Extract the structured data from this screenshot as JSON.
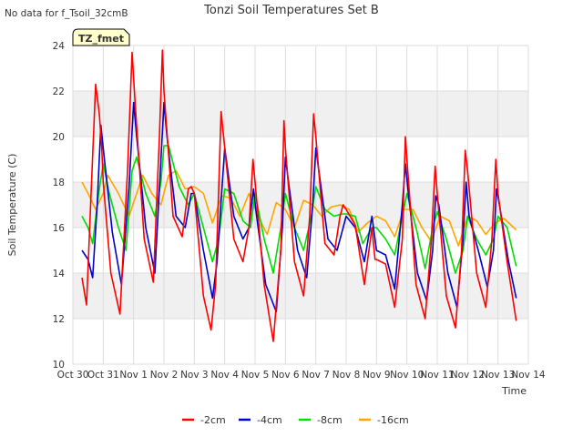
{
  "chart_data": {
    "type": "line",
    "title": "Tonzi Soil Temperatures Set B",
    "no_data_note": "No data for f_Tsoil_32cmB",
    "site_badge": "TZ_fmet",
    "xlabel": "Time",
    "ylabel": "Soil Temperature (C)",
    "ylim": [
      10,
      24
    ],
    "yticks": [
      10,
      12,
      14,
      16,
      18,
      20,
      22,
      24
    ],
    "xlim": [
      0,
      15
    ],
    "xticks": [
      {
        "t": 0,
        "label": "Oct 30"
      },
      {
        "t": 1,
        "label": "Oct 31"
      },
      {
        "t": 2,
        "label": "Nov 1"
      },
      {
        "t": 3,
        "label": "Nov 2"
      },
      {
        "t": 4,
        "label": "Nov 3"
      },
      {
        "t": 5,
        "label": "Nov 4"
      },
      {
        "t": 6,
        "label": "Nov 5"
      },
      {
        "t": 7,
        "label": "Nov 6"
      },
      {
        "t": 8,
        "label": "Nov 7"
      },
      {
        "t": 9,
        "label": "Nov 8"
      },
      {
        "t": 10,
        "label": "Nov 9"
      },
      {
        "t": 11,
        "label": "Nov 10"
      },
      {
        "t": 12,
        "label": "Nov 11"
      },
      {
        "t": 13,
        "label": "Nov 12"
      },
      {
        "t": 14,
        "label": "Nov 13"
      },
      {
        "t": 15,
        "label": "Nov 14"
      }
    ],
    "grid": true,
    "legend_position": "bottom",
    "series": [
      {
        "name": "-2cm",
        "color": "#ff0000",
        "x": [
          0.3,
          0.45,
          0.6,
          0.75,
          0.87,
          0.95,
          1.0,
          1.25,
          1.55,
          1.8,
          1.95,
          2.05,
          2.35,
          2.65,
          2.85,
          2.95,
          3.0,
          3.3,
          3.6,
          3.8,
          3.9,
          4.0,
          4.3,
          4.55,
          4.7,
          4.82,
          4.88,
          5.0,
          5.3,
          5.6,
          5.8,
          5.93,
          6.0,
          6.3,
          6.6,
          6.85,
          6.95,
          7.0,
          7.3,
          7.6,
          7.8,
          7.93,
          8.0,
          8.3,
          8.6,
          8.8,
          8.9,
          9.0,
          9.3,
          9.6,
          9.85,
          9.95,
          10.0,
          10.3,
          10.6,
          10.85,
          10.95,
          11.0,
          11.3,
          11.6,
          11.8,
          11.93,
          12.0,
          12.3,
          12.6,
          12.8,
          12.92,
          13.0,
          13.3,
          13.6,
          13.8,
          13.93,
          14.0,
          14.3,
          14.6
        ],
        "y": [
          13.8,
          12.6,
          17.5,
          22.3,
          21.0,
          19.5,
          18.0,
          14.0,
          12.2,
          18.5,
          23.7,
          21.5,
          15.5,
          13.6,
          20.0,
          23.8,
          22.0,
          16.5,
          15.6,
          17.7,
          17.8,
          17.5,
          13.0,
          11.5,
          13.5,
          18.5,
          21.1,
          19.5,
          15.5,
          14.5,
          16.0,
          19.0,
          18.0,
          13.5,
          11.0,
          15.0,
          20.7,
          19.5,
          14.5,
          13.0,
          16.5,
          21.0,
          20.0,
          15.3,
          14.8,
          16.5,
          17.0,
          16.8,
          16.1,
          13.5,
          16.0,
          14.6,
          14.6,
          14.4,
          12.5,
          15.5,
          20.0,
          19.0,
          13.5,
          12.0,
          15.3,
          18.7,
          17.5,
          13.0,
          11.6,
          15.0,
          19.4,
          18.5,
          14.0,
          12.5,
          15.5,
          19.0,
          17.5,
          14.5,
          11.9
        ]
      },
      {
        "name": "-4cm",
        "color": "#0000cc",
        "x": [
          0.3,
          0.5,
          0.65,
          0.8,
          0.92,
          1.0,
          1.3,
          1.6,
          1.85,
          2.0,
          2.1,
          2.4,
          2.7,
          2.9,
          3.0,
          3.1,
          3.4,
          3.7,
          3.9,
          4.0,
          4.3,
          4.6,
          4.75,
          4.9,
          5.0,
          5.3,
          5.6,
          5.8,
          5.95,
          6.05,
          6.35,
          6.7,
          6.9,
          7.0,
          7.1,
          7.4,
          7.7,
          7.9,
          8.0,
          8.1,
          8.4,
          8.7,
          8.9,
          9.0,
          9.3,
          9.6,
          9.85,
          10.0,
          10.3,
          10.6,
          10.85,
          10.95,
          11.05,
          11.35,
          11.65,
          11.85,
          11.95,
          12.05,
          12.35,
          12.65,
          12.85,
          12.95,
          13.05,
          13.35,
          13.65,
          13.85,
          13.95,
          14.05,
          14.35,
          14.6
        ],
        "y": [
          15.0,
          14.6,
          13.8,
          17.0,
          20.5,
          19.5,
          15.8,
          13.5,
          17.8,
          21.5,
          20.0,
          16.0,
          14.0,
          19.0,
          21.5,
          20.0,
          16.5,
          16.0,
          17.5,
          17.5,
          15.0,
          12.9,
          14.5,
          17.5,
          19.5,
          16.5,
          15.5,
          16.0,
          17.7,
          16.5,
          13.5,
          12.3,
          16.0,
          19.1,
          18.0,
          15.0,
          13.8,
          17.0,
          19.5,
          18.5,
          15.5,
          15.0,
          16.0,
          16.5,
          16.0,
          14.5,
          16.5,
          15.0,
          14.8,
          13.3,
          17.0,
          18.8,
          17.5,
          14.0,
          12.8,
          15.0,
          17.4,
          17.0,
          14.0,
          12.5,
          15.5,
          18.0,
          16.5,
          15.0,
          13.4,
          15.0,
          17.7,
          17.0,
          14.5,
          12.9
        ]
      },
      {
        "name": "-8cm",
        "color": "#00dd00",
        "x": [
          0.3,
          0.5,
          0.65,
          0.85,
          1.0,
          1.2,
          1.5,
          1.75,
          1.95,
          2.1,
          2.4,
          2.7,
          2.9,
          3.0,
          3.15,
          3.5,
          3.8,
          4.0,
          4.3,
          4.6,
          4.8,
          5.0,
          5.3,
          5.6,
          5.85,
          6.0,
          6.3,
          6.6,
          6.85,
          7.0,
          7.3,
          7.6,
          7.85,
          8.0,
          8.3,
          8.6,
          8.85,
          9.0,
          9.3,
          9.55,
          9.85,
          10.0,
          10.3,
          10.6,
          10.85,
          11.0,
          11.3,
          11.6,
          11.85,
          12.0,
          12.3,
          12.6,
          12.85,
          13.0,
          13.3,
          13.6,
          13.85,
          14.0,
          14.3,
          14.6
        ],
        "y": [
          16.5,
          16.0,
          15.3,
          17.5,
          18.8,
          17.5,
          16.0,
          15.0,
          18.5,
          19.1,
          17.5,
          16.5,
          18.0,
          19.6,
          19.6,
          17.8,
          17.0,
          17.5,
          16.0,
          14.5,
          15.5,
          17.7,
          17.5,
          16.3,
          16.0,
          17.5,
          15.5,
          14.0,
          16.0,
          17.5,
          16.0,
          15.0,
          16.5,
          17.8,
          16.8,
          16.5,
          16.6,
          16.6,
          16.5,
          15.3,
          16.0,
          16.0,
          15.5,
          14.8,
          16.5,
          17.5,
          16.0,
          14.2,
          16.0,
          16.7,
          15.5,
          14.0,
          15.0,
          16.5,
          15.5,
          14.8,
          15.5,
          16.5,
          16.0,
          14.3
        ]
      },
      {
        "name": "-16cm",
        "color": "#ffa500",
        "x": [
          0.3,
          0.5,
          0.75,
          1.0,
          1.15,
          1.5,
          1.85,
          2.1,
          2.3,
          2.6,
          2.9,
          3.15,
          3.4,
          3.7,
          4.0,
          4.3,
          4.6,
          4.9,
          5.2,
          5.5,
          5.8,
          6.1,
          6.4,
          6.7,
          7.0,
          7.3,
          7.6,
          7.9,
          8.2,
          8.5,
          8.8,
          9.1,
          9.4,
          9.7,
          10.0,
          10.3,
          10.6,
          10.9,
          11.2,
          11.5,
          11.8,
          12.1,
          12.4,
          12.7,
          13.0,
          13.3,
          13.6,
          13.9,
          14.2,
          14.6
        ],
        "y": [
          18.0,
          17.5,
          16.8,
          17.5,
          18.3,
          17.5,
          16.5,
          17.5,
          18.3,
          17.5,
          17.0,
          18.3,
          18.5,
          17.7,
          17.8,
          17.5,
          16.2,
          17.4,
          17.3,
          16.5,
          17.5,
          16.5,
          15.7,
          17.1,
          16.8,
          16.0,
          17.2,
          17.0,
          16.5,
          16.9,
          17.0,
          16.8,
          15.8,
          16.2,
          16.5,
          16.3,
          15.6,
          16.8,
          16.8,
          16.0,
          15.4,
          16.5,
          16.3,
          15.2,
          16.5,
          16.3,
          15.7,
          16.2,
          16.4,
          15.9
        ]
      }
    ]
  }
}
